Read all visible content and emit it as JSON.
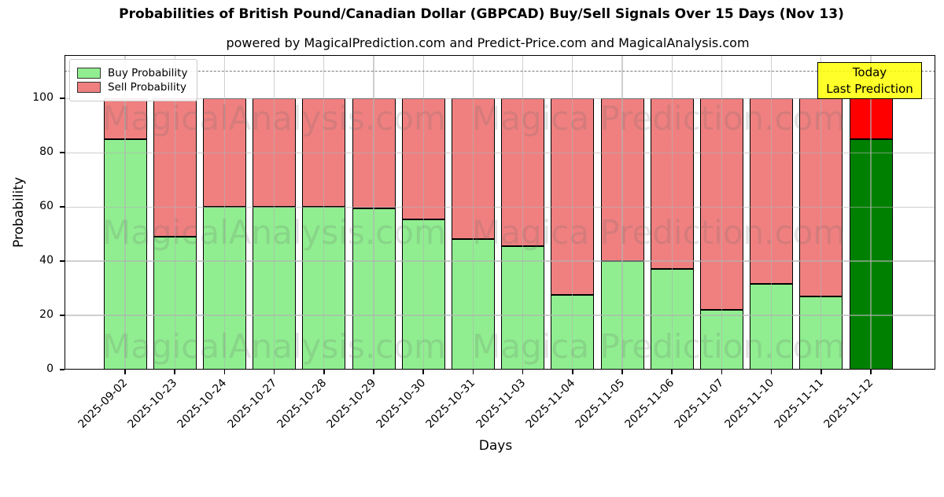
{
  "chart_data": {
    "type": "bar",
    "stacked": true,
    "title": "Probabilities of British Pound/Canadian Dollar (GBPCAD) Buy/Sell Signals Over 15 Days (Nov 13)",
    "subtitle": "powered by MagicalPrediction.com and Predict-Price.com and MagicalAnalysis.com",
    "xlabel": "Days",
    "ylabel": "Probability",
    "ylim": [
      0,
      116
    ],
    "yticks": [
      0,
      20,
      40,
      60,
      80,
      100
    ],
    "grid": true,
    "dashed_hline": 110,
    "legend_position": "upper left",
    "categories": [
      "2025-09-02",
      "2025-10-23",
      "2025-10-24",
      "2025-10-27",
      "2025-10-28",
      "2025-10-29",
      "2025-10-30",
      "2025-10-31",
      "2025-11-03",
      "2025-11-04",
      "2025-11-05",
      "2025-11-06",
      "2025-11-07",
      "2025-11-10",
      "2025-11-11",
      "2025-11-12"
    ],
    "series": [
      {
        "name": "Buy Probability",
        "color": "#90ee90",
        "values": [
          85,
          49,
          60,
          60,
          60,
          59.5,
          55.5,
          48,
          45.5,
          27.5,
          40,
          37,
          22,
          31.5,
          27,
          85
        ]
      },
      {
        "name": "Sell Probability",
        "color": "#f08080",
        "values": [
          15,
          51,
          40,
          40,
          40,
          40.5,
          44.5,
          52,
          54.5,
          72.5,
          60,
          63,
          78,
          68.5,
          73,
          15
        ]
      }
    ],
    "bar_edge_color": "#000000",
    "today_bar": {
      "category": "2025-11-12",
      "index": 15,
      "buy_color": "#008000",
      "sell_color": "#ff0000"
    },
    "annotation": {
      "lines": [
        "Today",
        "Last Prediction"
      ],
      "bg_color": "#ffff00"
    },
    "watermarks": {
      "left": "MagicalAnalysis.com",
      "right": "Magica Prediction.com",
      "color": "#666666"
    }
  }
}
